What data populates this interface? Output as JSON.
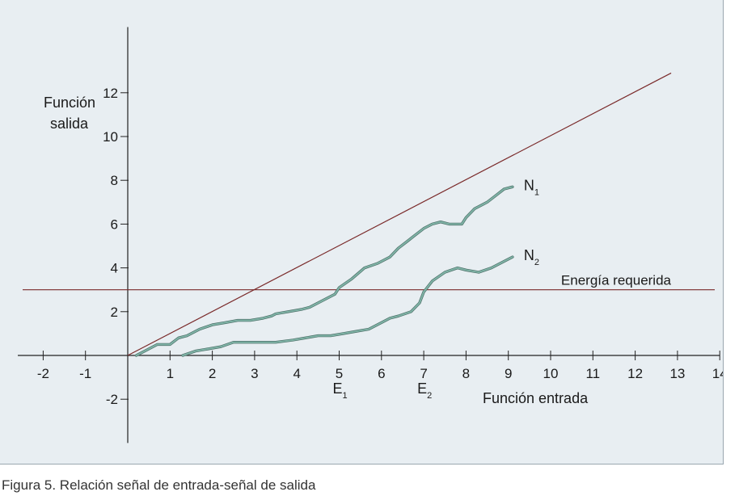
{
  "caption": "Figura 5. Relación señal de entrada-señal de salida",
  "chart_data": {
    "type": "line",
    "ylabel": [
      "Función",
      "salida"
    ],
    "xlabel": "Función entrada",
    "xlim": [
      -2.6,
      14
    ],
    "ylim": [
      -4,
      15
    ],
    "x_ticks": [
      -2,
      -1,
      1,
      2,
      3,
      4,
      5,
      6,
      7,
      8,
      9,
      10,
      11,
      12,
      13,
      14
    ],
    "y_ticks": [
      -2,
      2,
      4,
      6,
      8,
      10,
      12
    ],
    "grid": false,
    "colors": {
      "reference": "#7a2a2a",
      "curve": "#7fb3a6",
      "axis": "#222222",
      "background": "#e8eef2"
    },
    "threshold": {
      "label": "Energía requerida",
      "y": 3
    },
    "reference_line": {
      "x": [
        0,
        12.85
      ],
      "y": [
        0,
        12.9
      ]
    },
    "series": [
      {
        "name": "N",
        "sub": "1",
        "x": [
          0.2,
          0.4,
          0.7,
          1.0,
          1.2,
          1.4,
          1.7,
          2.0,
          2.3,
          2.6,
          2.9,
          3.2,
          3.4,
          3.5,
          3.8,
          4.1,
          4.3,
          4.6,
          4.9,
          5.0,
          5.3,
          5.6,
          5.9,
          6.2,
          6.4,
          6.6,
          6.8,
          7.0,
          7.2,
          7.4,
          7.6,
          7.9,
          8.0,
          8.2,
          8.5,
          8.7,
          8.9,
          9.1
        ],
        "y": [
          0.0,
          0.2,
          0.5,
          0.5,
          0.8,
          0.9,
          1.2,
          1.4,
          1.5,
          1.6,
          1.6,
          1.7,
          1.8,
          1.9,
          2.0,
          2.1,
          2.2,
          2.5,
          2.8,
          3.1,
          3.5,
          4.0,
          4.2,
          4.5,
          4.9,
          5.2,
          5.5,
          5.8,
          6.0,
          6.1,
          6.0,
          6.0,
          6.3,
          6.7,
          7.0,
          7.3,
          7.6,
          7.7
        ]
      },
      {
        "name": "N",
        "sub": "2",
        "x": [
          1.3,
          1.6,
          1.9,
          2.2,
          2.5,
          2.8,
          3.1,
          3.5,
          3.9,
          4.2,
          4.5,
          4.8,
          5.1,
          5.4,
          5.7,
          6.0,
          6.2,
          6.4,
          6.7,
          6.9,
          7.0,
          7.2,
          7.5,
          7.8,
          8.0,
          8.3,
          8.6,
          8.9,
          9.1
        ],
        "y": [
          0.0,
          0.2,
          0.3,
          0.4,
          0.6,
          0.6,
          0.6,
          0.6,
          0.7,
          0.8,
          0.9,
          0.9,
          1.0,
          1.1,
          1.2,
          1.5,
          1.7,
          1.8,
          2.0,
          2.4,
          2.9,
          3.4,
          3.8,
          4.0,
          3.9,
          3.8,
          4.0,
          4.3,
          4.5
        ]
      }
    ],
    "annotations": [
      {
        "text": "E",
        "sub": "1",
        "x": 5.0
      },
      {
        "text": "E",
        "sub": "2",
        "x": 7.0
      }
    ]
  }
}
